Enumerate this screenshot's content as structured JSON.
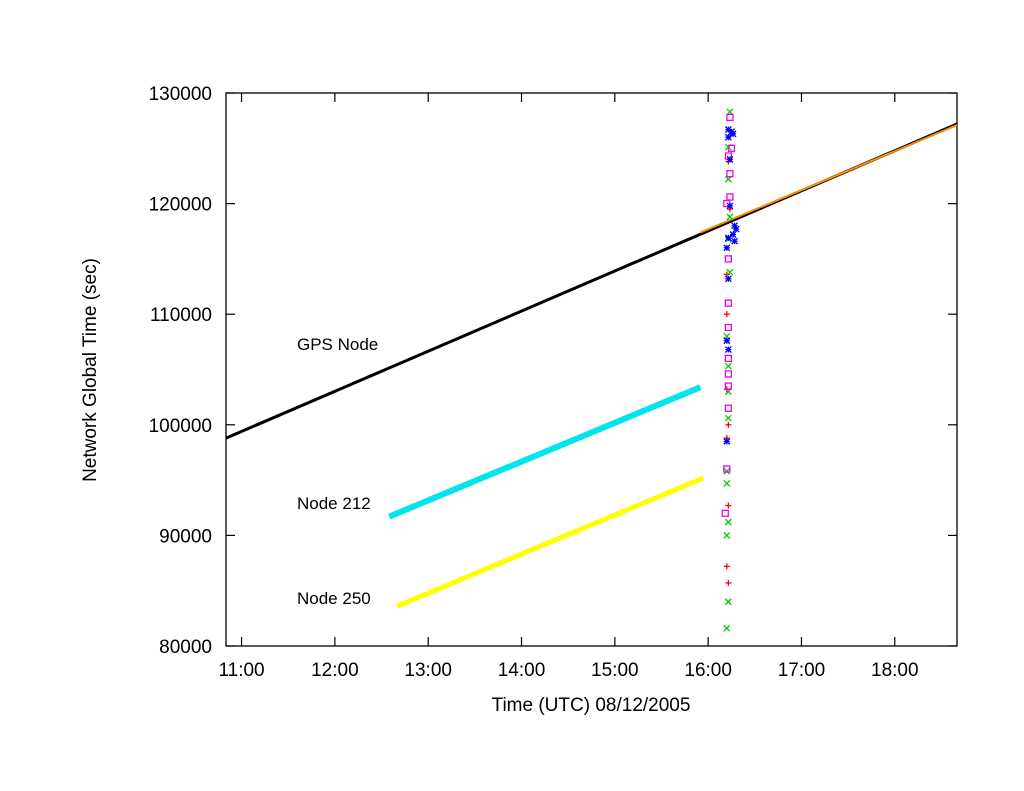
{
  "chart_data": {
    "type": "line",
    "xlabel": "Time (UTC) 08/12/2005",
    "ylabel": "Network Global Time (sec)",
    "xlim": [
      "10:50",
      "18:40"
    ],
    "ylim": [
      80000,
      130000
    ],
    "x_ticks": [
      "11:00",
      "12:00",
      "13:00",
      "14:00",
      "15:00",
      "16:00",
      "17:00",
      "18:00"
    ],
    "y_ticks": [
      80000,
      90000,
      100000,
      110000,
      120000,
      130000
    ],
    "grid": false,
    "legend": "none",
    "annotations": [
      {
        "text": "GPS Node",
        "series": "GPS Node"
      },
      {
        "text": "Node 212",
        "series": "Node 212"
      },
      {
        "text": "Node 250",
        "series": "Node 250"
      }
    ],
    "series": [
      {
        "name": "GPS Node",
        "color": "#000000",
        "points": [
          [
            "10:50",
            98800
          ],
          [
            "18:40",
            127200
          ]
        ]
      },
      {
        "name": "Node 212",
        "color": "#00e5ee",
        "points": [
          [
            "12:35",
            91700
          ],
          [
            "15:55",
            103400
          ]
        ]
      },
      {
        "name": "Node 250",
        "color": "#ffff00",
        "points": [
          [
            "12:40",
            83600
          ],
          [
            "15:57",
            95200
          ]
        ]
      },
      {
        "name": "",
        "color": "#ff8c00",
        "points": [
          [
            "15:55",
            117400
          ],
          [
            "18:40",
            127100
          ]
        ]
      },
      {
        "name": "",
        "color": "#ff0000",
        "marker": "+",
        "points": [
          [
            "16:12",
            113600
          ],
          [
            "16:12",
            110000
          ],
          [
            "16:12",
            103200
          ],
          [
            "16:13",
            100000
          ],
          [
            "16:12",
            98800
          ],
          [
            "16:13",
            92700
          ],
          [
            "16:12",
            87200
          ],
          [
            "16:13",
            85700
          ],
          [
            "16:14",
            119500
          ],
          [
            "16:13",
            123800
          ]
        ]
      },
      {
        "name": "",
        "color": "#00cc00",
        "marker": "x",
        "points": [
          [
            "16:14",
            128300
          ],
          [
            "16:13",
            125100
          ],
          [
            "16:13",
            122200
          ],
          [
            "16:14",
            118800
          ],
          [
            "16:13",
            116800
          ],
          [
            "16:14",
            113800
          ],
          [
            "16:12",
            108000
          ],
          [
            "16:13",
            105300
          ],
          [
            "16:13",
            103000
          ],
          [
            "16:13",
            100600
          ],
          [
            "16:12",
            95800
          ],
          [
            "16:12",
            94700
          ],
          [
            "16:13",
            91200
          ],
          [
            "16:12",
            90000
          ],
          [
            "16:13",
            84000
          ],
          [
            "16:12",
            81600
          ]
        ]
      },
      {
        "name": "",
        "color": "#ee00ee",
        "marker": "box",
        "points": [
          [
            "16:14",
            127800
          ],
          [
            "16:15",
            125000
          ],
          [
            "16:13",
            124300
          ],
          [
            "16:14",
            122700
          ],
          [
            "16:14",
            120600
          ],
          [
            "16:12",
            120000
          ],
          [
            "16:13",
            115000
          ],
          [
            "16:13",
            111000
          ],
          [
            "16:13",
            108800
          ],
          [
            "16:13",
            106000
          ],
          [
            "16:13",
            104600
          ],
          [
            "16:13",
            103500
          ],
          [
            "16:13",
            101500
          ],
          [
            "16:12",
            96000
          ],
          [
            "16:11",
            92000
          ]
        ]
      },
      {
        "name": "",
        "color": "#0000ee",
        "marker": "star",
        "points": [
          [
            "16:13",
            126700
          ],
          [
            "16:15",
            126500
          ],
          [
            "16:13",
            126000
          ],
          [
            "16:16",
            126300
          ],
          [
            "16:14",
            124000
          ],
          [
            "16:14",
            119800
          ],
          [
            "16:17",
            118000
          ],
          [
            "16:18",
            117700
          ],
          [
            "16:16",
            117200
          ],
          [
            "16:13",
            116900
          ],
          [
            "16:17",
            116600
          ],
          [
            "16:12",
            116000
          ],
          [
            "16:13",
            113200
          ],
          [
            "16:12",
            107600
          ],
          [
            "16:13",
            106800
          ],
          [
            "16:12",
            98500
          ]
        ]
      }
    ]
  }
}
